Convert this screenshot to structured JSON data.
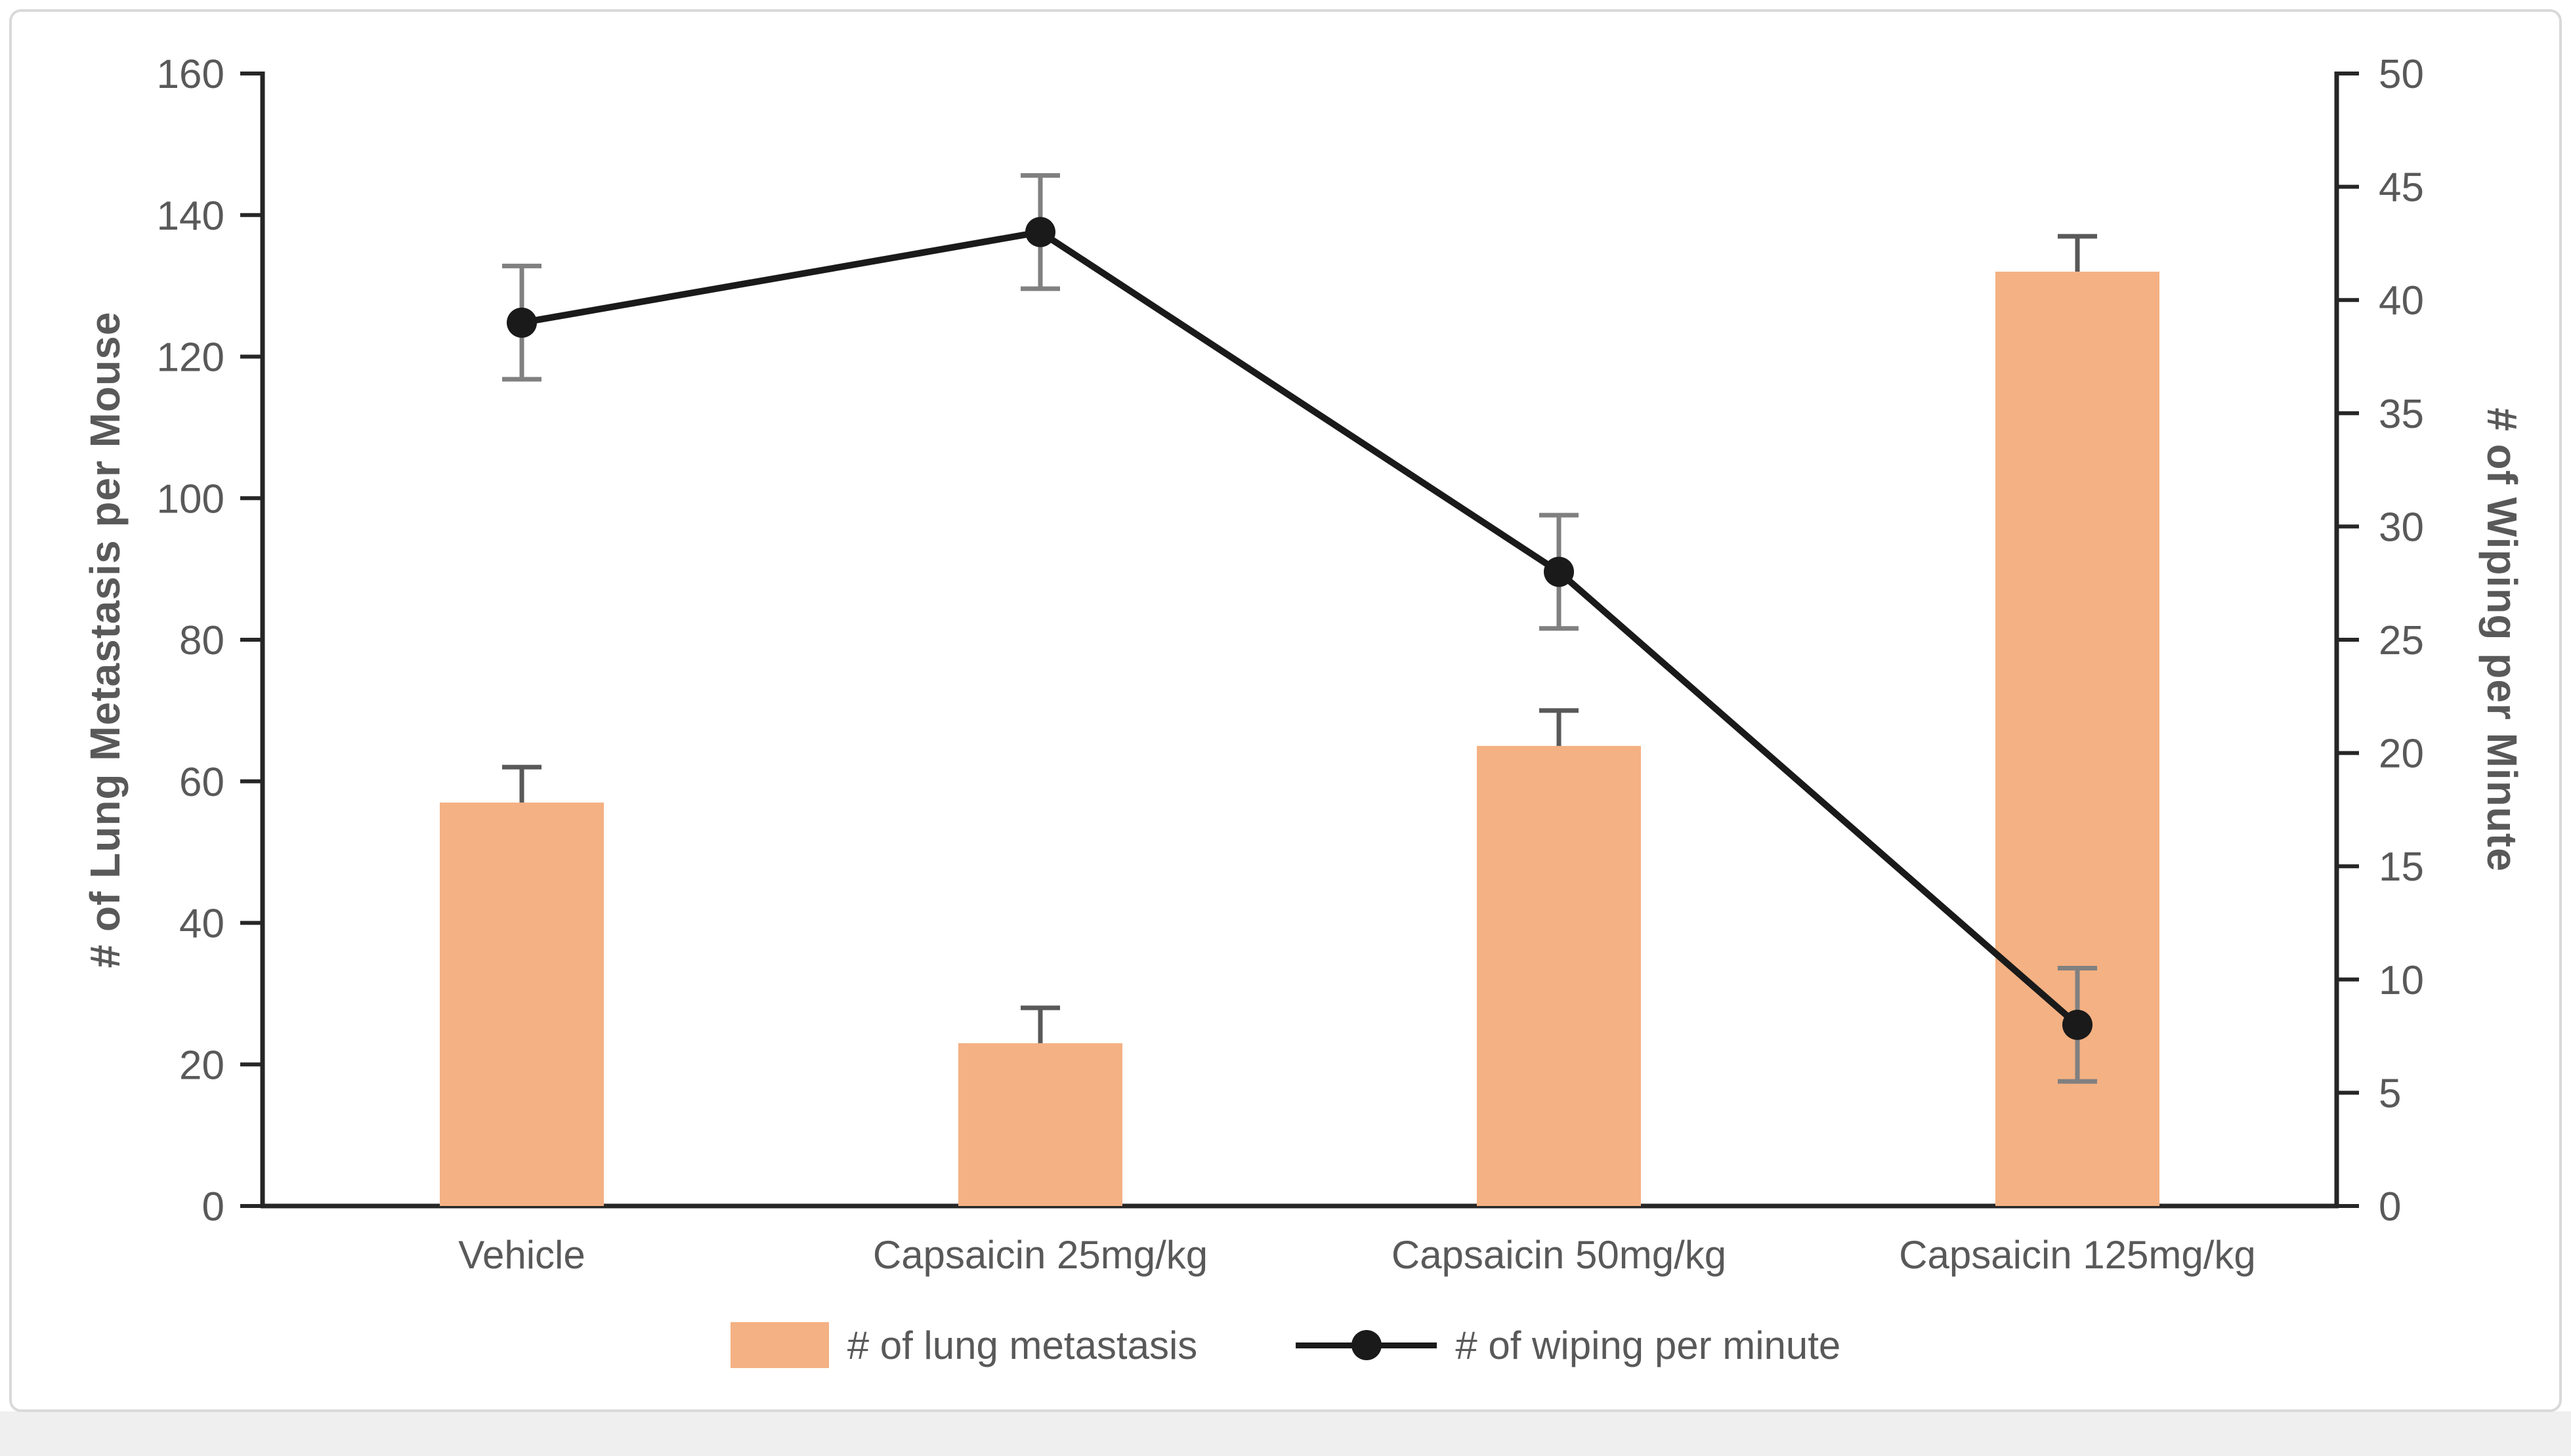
{
  "page": {
    "background": "#ffffff",
    "card_border_color": "#d9d9d9",
    "bottom_strip_color": "#efefef"
  },
  "chart_data": {
    "type": "combo",
    "title": "",
    "categories": [
      "Vehicle",
      "Capsaicin 25mg/kg",
      "Capsaicin 50mg/kg",
      "Capsaicin 125mg/kg"
    ],
    "series": [
      {
        "name": "# of lung metastasis",
        "type": "bar",
        "axis": "left",
        "values": [
          57,
          23,
          65,
          132
        ],
        "error_plus": [
          5,
          5,
          5,
          5
        ],
        "color": "#F4B183",
        "error_color": "#595959"
      },
      {
        "name": "# of wiping per minute",
        "type": "line",
        "axis": "right",
        "values": [
          39,
          43,
          28,
          8
        ],
        "error": [
          2.5,
          2.5,
          2.5,
          2.5
        ],
        "color": "#1a1a1a",
        "error_color": "#808080"
      }
    ],
    "left_axis": {
      "title": "# of Lung Metastasis per Mouse",
      "min": 0,
      "max": 160,
      "step": 20
    },
    "right_axis": {
      "title": "# of Wiping per Minute",
      "min": 0,
      "max": 50,
      "step": 5
    },
    "legend_position": "bottom",
    "grid": false,
    "axis_color": "#262626",
    "tick_label_color": "#595959",
    "category_label_color": "#595959"
  }
}
